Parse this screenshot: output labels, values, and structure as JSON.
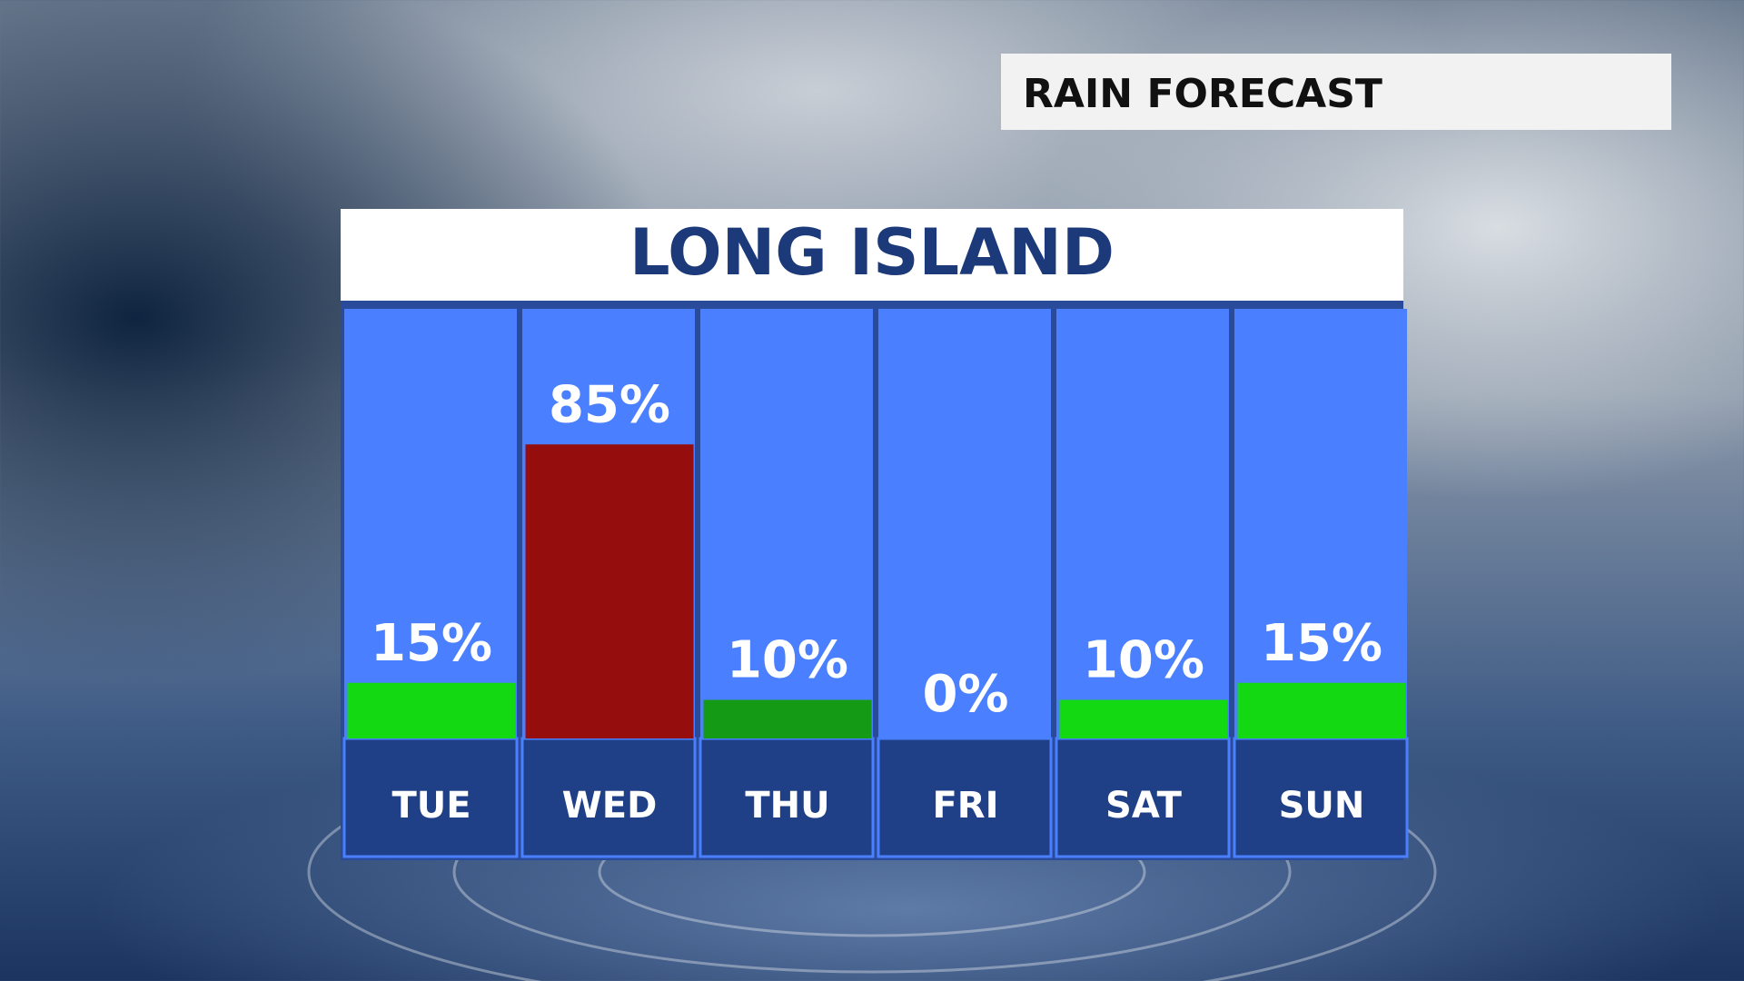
{
  "header": "RAIN FORECAST",
  "chart_data": {
    "type": "bar",
    "title": "LONG ISLAND",
    "categories": [
      "TUE",
      "WED",
      "THU",
      "FRI",
      "SAT",
      "SUN"
    ],
    "values": [
      15,
      85,
      10,
      0,
      10,
      15
    ],
    "value_labels": [
      "15%",
      "85%",
      "10%",
      "0%",
      "10%",
      "15%"
    ],
    "colors": [
      "#12d912",
      "#960d0d",
      "#159a15",
      "#ffffff",
      "#12d912",
      "#12d912"
    ]
  }
}
